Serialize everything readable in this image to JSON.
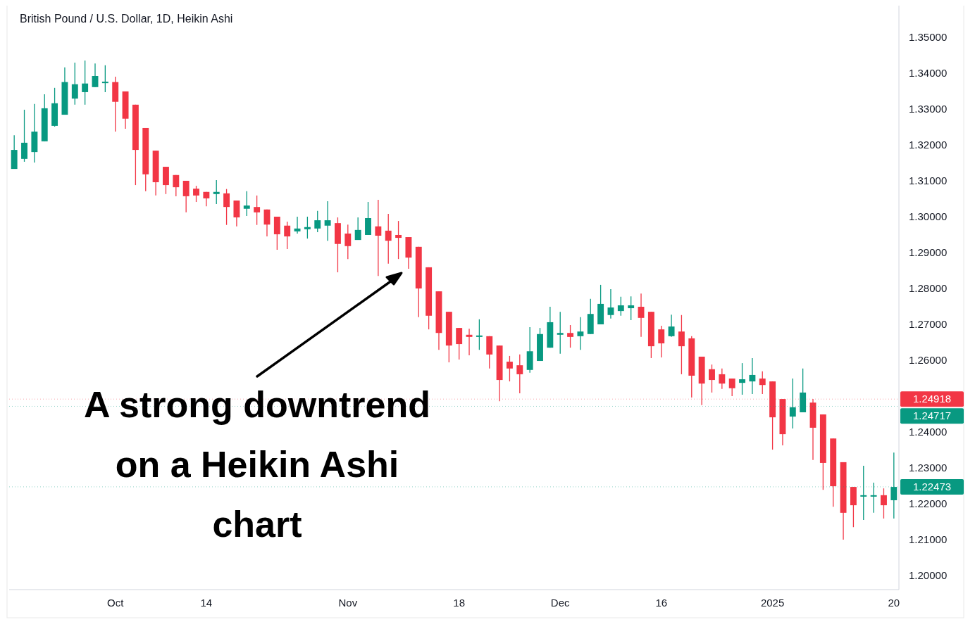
{
  "chart_data": {
    "type": "candlestick",
    "title": "British Pound / U.S. Dollar, 1D, Heikin Ashi",
    "categories": [
      null,
      null,
      null,
      null,
      null,
      null,
      null,
      null,
      null,
      null,
      "Oct",
      null,
      null,
      null,
      null,
      null,
      null,
      null,
      null,
      "14",
      null,
      null,
      null,
      null,
      null,
      null,
      null,
      null,
      null,
      null,
      null,
      null,
      null,
      "Nov",
      null,
      null,
      null,
      null,
      null,
      null,
      null,
      null,
      null,
      null,
      "18",
      null,
      null,
      null,
      null,
      null,
      null,
      null,
      null,
      null,
      "Dec",
      null,
      null,
      null,
      null,
      null,
      null,
      null,
      null,
      null,
      "16",
      null,
      null,
      null,
      null,
      null,
      null,
      null,
      null,
      null,
      null,
      "2025",
      null,
      null,
      null,
      null,
      null,
      null,
      null,
      null,
      null,
      null,
      null,
      "20"
    ],
    "ohlc": [
      [
        1.3133,
        1.3227,
        1.3133,
        1.3186
      ],
      [
        1.3161,
        1.3298,
        1.3153,
        1.3206
      ],
      [
        1.318,
        1.3314,
        1.3151,
        1.3237
      ],
      [
        1.321,
        1.3341,
        1.321,
        1.3302
      ],
      [
        1.3253,
        1.3359,
        1.3251,
        1.3316
      ],
      [
        1.3284,
        1.3416,
        1.3284,
        1.3375
      ],
      [
        1.3329,
        1.3429,
        1.3312,
        1.3369
      ],
      [
        1.3347,
        1.3435,
        1.3312,
        1.3371
      ],
      [
        1.3361,
        1.3427,
        1.3361,
        1.3392
      ],
      [
        1.3375,
        1.3422,
        1.3347,
        1.3376
      ],
      [
        1.3375,
        1.339,
        1.3237,
        1.332
      ],
      [
        1.3349,
        1.3349,
        1.3245,
        1.3273
      ],
      [
        1.3312,
        1.3312,
        1.3088,
        1.3186
      ],
      [
        1.3247,
        1.3247,
        1.3071,
        1.3118
      ],
      [
        1.3184,
        1.3184,
        1.3059,
        1.3096
      ],
      [
        1.3139,
        1.3139,
        1.3063,
        1.3088
      ],
      [
        1.3116,
        1.3116,
        1.3057,
        1.3082
      ],
      [
        1.31,
        1.31,
        1.3012,
        1.3057
      ],
      [
        1.3078,
        1.3086,
        1.3041,
        1.3059
      ],
      [
        1.3069,
        1.3069,
        1.3029,
        1.3051
      ],
      [
        1.3063,
        1.3102,
        1.3035,
        1.3069
      ],
      [
        1.3065,
        1.3077,
        1.2977,
        1.3027
      ],
      [
        1.3045,
        1.3045,
        1.2973,
        1.2998
      ],
      [
        1.3022,
        1.3071,
        1.3002,
        1.3031
      ],
      [
        1.3027,
        1.3059,
        1.2977,
        1.3012
      ],
      [
        1.302,
        1.302,
        1.2945,
        1.2978
      ],
      [
        1.3,
        1.3,
        1.2908,
        1.2951
      ],
      [
        1.2975,
        1.2986,
        1.291,
        1.2945
      ],
      [
        1.2959,
        1.3,
        1.2953,
        1.2967
      ],
      [
        1.2965,
        1.3,
        1.2939,
        1.2971
      ],
      [
        1.2967,
        1.3016,
        1.2957,
        1.299
      ],
      [
        1.2975,
        1.3043,
        1.2933,
        1.299
      ],
      [
        1.2982,
        1.2998,
        1.2845,
        1.2924
      ],
      [
        1.2953,
        1.2978,
        1.2882,
        1.2918
      ],
      [
        1.2935,
        1.2998,
        1.2935,
        1.2963
      ],
      [
        1.2949,
        1.3041,
        1.2949,
        1.2996
      ],
      [
        1.2973,
        1.3047,
        1.2835,
        1.2947
      ],
      [
        1.2961,
        1.3008,
        1.2869,
        1.2933
      ],
      [
        1.2949,
        1.2988,
        1.2882,
        1.2941
      ],
      [
        1.2943,
        1.2943,
        1.2855,
        1.2886
      ],
      [
        1.2916,
        1.2916,
        1.272,
        1.28
      ],
      [
        1.2859,
        1.2859,
        1.2686,
        1.2724
      ],
      [
        1.2792,
        1.2792,
        1.2629,
        1.2676
      ],
      [
        1.2735,
        1.2735,
        1.2594,
        1.2641
      ],
      [
        1.269,
        1.269,
        1.2602,
        1.2645
      ],
      [
        1.2671,
        1.2688,
        1.2614,
        1.2665
      ],
      [
        1.2665,
        1.2714,
        1.2629,
        1.2669
      ],
      [
        1.2667,
        1.2667,
        1.2577,
        1.2616
      ],
      [
        1.2641,
        1.2641,
        1.2486,
        1.2545
      ],
      [
        1.2596,
        1.2612,
        1.2541,
        1.2577
      ],
      [
        1.2586,
        1.2616,
        1.2508,
        1.2561
      ],
      [
        1.2573,
        1.2692,
        1.2565,
        1.2625
      ],
      [
        1.2598,
        1.269,
        1.2598,
        1.2673
      ],
      [
        1.2635,
        1.2749,
        1.2635,
        1.2706
      ],
      [
        1.2671,
        1.2735,
        1.2618,
        1.2676
      ],
      [
        1.2676,
        1.2698,
        1.2635,
        1.2665
      ],
      [
        1.2667,
        1.272,
        1.2629,
        1.268
      ],
      [
        1.2673,
        1.2771,
        1.2673,
        1.2729
      ],
      [
        1.27,
        1.281,
        1.27,
        1.2757
      ],
      [
        1.2726,
        1.2798,
        1.2716,
        1.2747
      ],
      [
        1.2737,
        1.2777,
        1.2724,
        1.2753
      ],
      [
        1.2745,
        1.2778,
        1.2712,
        1.2753
      ],
      [
        1.2749,
        1.2786,
        1.2665,
        1.2718
      ],
      [
        1.2735,
        1.2735,
        1.2606,
        1.2639
      ],
      [
        1.2686,
        1.2696,
        1.2608,
        1.2647
      ],
      [
        1.2667,
        1.2727,
        1.2665,
        1.2694
      ],
      [
        1.268,
        1.2726,
        1.2561,
        1.2639
      ],
      [
        1.2661,
        1.2667,
        1.2496,
        1.2557
      ],
      [
        1.261,
        1.261,
        1.2475,
        1.2535
      ],
      [
        1.2575,
        1.2588,
        1.251,
        1.2545
      ],
      [
        1.2561,
        1.2577,
        1.252,
        1.2535
      ],
      [
        1.2549,
        1.2549,
        1.25,
        1.2522
      ],
      [
        1.2537,
        1.2592,
        1.2504,
        1.2547
      ],
      [
        1.2541,
        1.2606,
        1.2506,
        1.2559
      ],
      [
        1.2549,
        1.2569,
        1.2506,
        1.2531
      ],
      [
        1.2541,
        1.2541,
        1.2351,
        1.2441
      ],
      [
        1.2492,
        1.2492,
        1.2363,
        1.2394
      ],
      [
        1.2443,
        1.2549,
        1.241,
        1.2469
      ],
      [
        1.2455,
        1.2577,
        1.2455,
        1.251
      ],
      [
        1.2482,
        1.2492,
        1.2322,
        1.2412
      ],
      [
        1.2449,
        1.2449,
        1.2239,
        1.2314
      ],
      [
        1.2382,
        1.2382,
        1.2192,
        1.2249
      ],
      [
        1.2316,
        1.2316,
        1.21,
        1.2175
      ],
      [
        1.2247,
        1.2247,
        1.2135,
        1.2196
      ],
      [
        1.222,
        1.2306,
        1.2155,
        1.2224
      ],
      [
        1.222,
        1.2259,
        1.2175,
        1.2224
      ],
      [
        1.2224,
        1.2243,
        1.2159,
        1.2196
      ],
      [
        1.221,
        1.2343,
        1.2159,
        1.2247
      ]
    ],
    "colors": [
      "#089981",
      "#089981",
      "#089981",
      "#089981",
      "#089981",
      "#089981",
      "#089981",
      "#089981",
      "#089981",
      "#089981",
      "#f23645",
      "#f23645",
      "#f23645",
      "#f23645",
      "#f23645",
      "#f23645",
      "#f23645",
      "#f23645",
      "#f23645",
      "#f23645",
      "#089981",
      "#f23645",
      "#f23645",
      "#089981",
      "#f23645",
      "#f23645",
      "#f23645",
      "#f23645",
      "#089981",
      "#089981",
      "#089981",
      "#089981",
      "#f23645",
      "#f23645",
      "#089981",
      "#089981",
      "#f23645",
      "#f23645",
      "#f23645",
      "#f23645",
      "#f23645",
      "#f23645",
      "#f23645",
      "#f23645",
      "#f23645",
      "#f23645",
      "#089981",
      "#f23645",
      "#f23645",
      "#f23645",
      "#f23645",
      "#089981",
      "#089981",
      "#089981",
      "#089981",
      "#f23645",
      "#089981",
      "#089981",
      "#089981",
      "#089981",
      "#089981",
      "#089981",
      "#f23645",
      "#f23645",
      "#f23645",
      "#089981",
      "#f23645",
      "#f23645",
      "#f23645",
      "#f23645",
      "#f23645",
      "#f23645",
      "#089981",
      "#089981",
      "#f23645",
      "#f23645",
      "#f23645",
      "#089981",
      "#089981",
      "#f23645",
      "#f23645",
      "#f23645",
      "#f23645",
      "#f23645",
      "#089981",
      "#089981",
      "#f23645",
      "#089981"
    ],
    "ylim": [
      1.1961,
      1.3588
    ],
    "yticks": [
      {
        "value": 1.2,
        "label": "1.20000"
      },
      {
        "value": 1.21,
        "label": "1.21000"
      },
      {
        "value": 1.22,
        "label": "1.22000"
      },
      {
        "value": 1.23,
        "label": "1.23000"
      },
      {
        "value": 1.24,
        "label": "1.24000"
      },
      {
        "value": 1.26,
        "label": "1.26000"
      },
      {
        "value": 1.27,
        "label": "1.27000"
      },
      {
        "value": 1.28,
        "label": "1.28000"
      },
      {
        "value": 1.29,
        "label": "1.29000"
      },
      {
        "value": 1.3,
        "label": "1.30000"
      },
      {
        "value": 1.31,
        "label": "1.31000"
      },
      {
        "value": 1.32,
        "label": "1.32000"
      },
      {
        "value": 1.33,
        "label": "1.33000"
      },
      {
        "value": 1.34,
        "label": "1.34000"
      },
      {
        "value": 1.35,
        "label": "1.35000"
      }
    ],
    "ref_lines": [
      {
        "axis": "y",
        "value": 1.24918,
        "label": "1.24918",
        "color": "#f23645"
      },
      {
        "axis": "y",
        "value": 1.24717,
        "label": "1.24717",
        "color": "#089981"
      },
      {
        "axis": "y",
        "value": 1.22473,
        "label": "1.22473",
        "color": "#089981"
      }
    ],
    "annotations": [
      "A strong downtrend on a Heikin Ashi chart"
    ],
    "grid": false
  }
}
